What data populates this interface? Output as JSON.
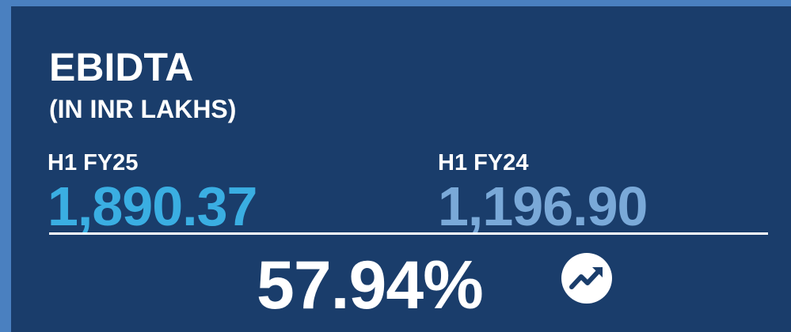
{
  "title": "EBIDTA",
  "subtitle": "(IN INR LAKHS)",
  "current": {
    "label": "H1 FY25",
    "value": "1,890.37"
  },
  "previous": {
    "label": "H1 FY24",
    "value": "1,196.90"
  },
  "change": "57.94%"
}
